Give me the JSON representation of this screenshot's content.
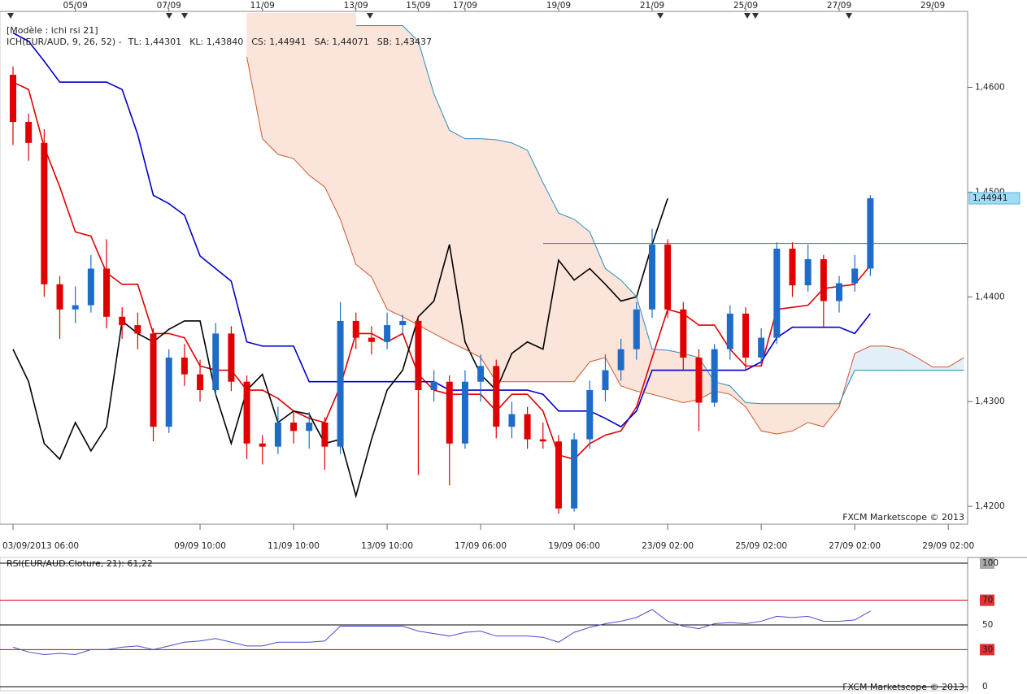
{
  "chart_data": [
    {
      "type": "candlestick",
      "title": "[Modèle : ichi rsi 21]",
      "indicator_label": "ICH(EUR/AUD, 9, 26, 52) -",
      "watermark": "FXCM Marketscope © 2013",
      "categories": [
        "03/09/2013 06:00",
        null,
        null,
        null,
        null,
        null,
        null,
        null,
        null,
        null,
        null,
        null,
        "09/09 10:00",
        null,
        null,
        null,
        null,
        null,
        "11/09 10:00",
        null,
        null,
        null,
        null,
        null,
        "13/09 10:00",
        null,
        null,
        null,
        null,
        null,
        "17/09 06:00",
        null,
        null,
        null,
        null,
        null,
        "19/09 06:00",
        null,
        null,
        null,
        null,
        null,
        "23/09 02:00",
        null,
        null,
        null,
        null,
        null,
        "25/09 02:00",
        null,
        null,
        null,
        null,
        null,
        "27/09 02:00",
        null,
        null,
        null,
        null,
        null,
        "29/09 02:00",
        null
      ],
      "top_labels": [
        null,
        null,
        null,
        null,
        "05/09",
        null,
        null,
        null,
        null,
        null,
        "07/09",
        null,
        null,
        null,
        null,
        null,
        "11/09",
        null,
        null,
        null,
        null,
        null,
        "13/09",
        null,
        null,
        null,
        "15/09",
        null,
        null,
        "17/09",
        null,
        null,
        null,
        null,
        null,
        "19/09",
        null,
        null,
        null,
        null,
        null,
        "21/09",
        null,
        null,
        null,
        null,
        null,
        "25/09",
        null,
        null,
        null,
        null,
        null,
        "27/09",
        null,
        null,
        null,
        null,
        null,
        "29/09",
        null,
        null
      ],
      "open": [
        1.4612,
        1.4567,
        1.4547,
        1.4412,
        1.4388,
        1.4392,
        1.4427,
        1.4381,
        1.4373,
        1.4365,
        1.4276,
        1.4342,
        1.4326,
        1.4311,
        1.4365,
        1.4319,
        1.426,
        1.4257,
        1.428,
        1.4272,
        1.428,
        1.4257,
        1.4377,
        1.4361,
        1.4357,
        1.4373,
        1.4377,
        1.4311,
        1.4319,
        1.426,
        1.4319,
        1.4334,
        1.4276,
        1.4288,
        1.4264,
        1.4262,
        1.4198,
        1.4264,
        1.4311,
        1.433,
        1.435,
        1.4388,
        1.445,
        1.4388,
        1.4342,
        1.4299,
        1.435,
        1.4384,
        1.4342,
        1.4361,
        1.4446,
        1.4411,
        1.4436,
        1.4396,
        1.4413,
        1.4427,
        null,
        null,
        null,
        null,
        null,
        null
      ],
      "high": [
        1.462,
        1.4575,
        1.456,
        1.442,
        1.441,
        1.444,
        1.4455,
        1.439,
        1.4385,
        1.437,
        1.435,
        1.4355,
        1.434,
        1.4375,
        1.4372,
        1.4325,
        1.4268,
        1.4295,
        1.4292,
        1.429,
        1.4285,
        1.4395,
        1.4385,
        1.4372,
        1.4385,
        1.4383,
        1.438,
        1.433,
        1.4325,
        1.433,
        1.4345,
        1.434,
        1.43,
        1.4295,
        1.428,
        1.4268,
        1.427,
        1.432,
        1.4345,
        1.436,
        1.4395,
        1.4465,
        1.4455,
        1.4395,
        1.435,
        1.4355,
        1.4392,
        1.439,
        1.437,
        1.4452,
        1.4452,
        1.445,
        1.444,
        1.442,
        1.444,
        1.4497,
        null,
        null,
        null,
        null,
        null,
        null
      ],
      "low": [
        1.4545,
        1.453,
        1.44,
        1.436,
        1.4375,
        1.4385,
        1.437,
        1.436,
        1.435,
        1.4262,
        1.427,
        1.4315,
        1.43,
        1.4305,
        1.431,
        1.4245,
        1.424,
        1.425,
        1.426,
        1.4255,
        1.4235,
        1.425,
        1.435,
        1.4345,
        1.435,
        1.4365,
        1.423,
        1.43,
        1.422,
        1.4255,
        1.43,
        1.4265,
        1.4265,
        1.4255,
        1.4255,
        1.4193,
        1.4195,
        1.4255,
        1.43,
        1.432,
        1.434,
        1.438,
        1.438,
        1.433,
        1.4272,
        1.4295,
        1.434,
        1.433,
        1.4335,
        1.4355,
        1.44,
        1.4405,
        1.437,
        1.4385,
        1.4405,
        1.442,
        null,
        null,
        null,
        null,
        null,
        null
      ],
      "close": [
        1.4567,
        1.4547,
        1.4412,
        1.4388,
        1.4392,
        1.4427,
        1.4381,
        1.4373,
        1.4365,
        1.4276,
        1.4342,
        1.4326,
        1.4311,
        1.4365,
        1.4319,
        1.426,
        1.4257,
        1.428,
        1.4272,
        1.428,
        1.4257,
        1.4377,
        1.4361,
        1.4357,
        1.4373,
        1.4377,
        1.4311,
        1.4319,
        1.426,
        1.4319,
        1.4334,
        1.4276,
        1.4288,
        1.4264,
        1.4262,
        1.4198,
        1.4264,
        1.4311,
        1.433,
        1.435,
        1.4388,
        1.445,
        1.4388,
        1.4342,
        1.4299,
        1.435,
        1.4384,
        1.4342,
        1.4361,
        1.4446,
        1.4411,
        1.4436,
        1.4396,
        1.4413,
        1.4427,
        1.44941,
        null,
        null,
        null,
        null,
        null,
        null
      ],
      "up_color": "#1e6cc8",
      "down_color": "#e00000",
      "series": [
        {
          "name": "TL: 1,44301",
          "color": "#e00000",
          "values": [
            1.4605,
            1.4598,
            1.4543,
            1.4505,
            1.4462,
            1.4458,
            1.4423,
            1.4412,
            1.4412,
            1.4365,
            1.4365,
            1.4361,
            1.4334,
            1.433,
            1.433,
            1.4311,
            1.4311,
            1.4303,
            1.4291,
            1.4284,
            1.428,
            1.4315,
            1.4365,
            1.4365,
            1.4357,
            1.4365,
            1.4326,
            1.4311,
            1.4307,
            1.4307,
            1.4307,
            1.4291,
            1.4307,
            1.4307,
            1.4291,
            1.4249,
            1.4245,
            1.426,
            1.4268,
            1.4272,
            1.4295,
            1.4342,
            1.4388,
            1.4384,
            1.4373,
            1.4373,
            1.435,
            1.4334,
            1.4334,
            1.4388,
            1.439,
            1.4392,
            1.4408,
            1.441,
            1.4412,
            1.443,
            null,
            null,
            null,
            null,
            null,
            null
          ]
        },
        {
          "name": "KL: 1,43840",
          "color": "#0000cc",
          "values": [
            1.4652,
            1.4644,
            1.4625,
            1.4605,
            1.4605,
            1.4605,
            1.4605,
            1.4598,
            1.4555,
            1.4497,
            1.4489,
            1.4478,
            1.4439,
            1.4427,
            1.4415,
            1.4357,
            1.4353,
            1.4353,
            1.4353,
            1.4319,
            1.4319,
            1.4319,
            1.4319,
            1.4319,
            1.4319,
            1.4319,
            1.4319,
            1.4319,
            1.4311,
            1.4311,
            1.4311,
            1.4311,
            1.4311,
            1.4311,
            1.4307,
            1.4291,
            1.4291,
            1.4291,
            1.4284,
            1.4276,
            1.4291,
            1.433,
            1.433,
            1.433,
            1.433,
            1.433,
            1.433,
            1.433,
            1.4338,
            1.4361,
            1.4371,
            1.4371,
            1.4371,
            1.4371,
            1.4365,
            1.4384,
            null,
            null,
            null,
            null,
            null,
            null
          ]
        },
        {
          "name": "CS: 1,44941",
          "color": "#000000",
          "values": [
            1.435,
            1.4319,
            1.426,
            1.4245,
            1.428,
            1.4253,
            1.4276,
            1.4377,
            1.4365,
            1.4357,
            1.4369,
            1.4377,
            1.4377,
            1.4307,
            1.426,
            1.4311,
            1.4326,
            1.428,
            1.4291,
            1.4288,
            1.426,
            1.4264,
            1.421,
            1.4264,
            1.4311,
            1.433,
            1.4381,
            1.4396,
            1.445,
            1.4357,
            1.4326,
            1.4311,
            1.4346,
            1.4357,
            1.435,
            1.4435,
            1.4416,
            1.4427,
            1.4412,
            1.4396,
            1.44,
            1.445,
            1.4494,
            null,
            null,
            null,
            null,
            null,
            null,
            null,
            null,
            null,
            null,
            null,
            null,
            null,
            null,
            null,
            null,
            null,
            null,
            null
          ]
        },
        {
          "name": "SA: 1,44071",
          "color": "#d2572b",
          "values": [
            null,
            null,
            null,
            null,
            null,
            null,
            null,
            null,
            null,
            null,
            null,
            null,
            null,
            null,
            null,
            1.4629,
            1.4551,
            1.4536,
            1.4532,
            1.4516,
            1.4505,
            1.4474,
            1.4431,
            1.4419,
            1.4388,
            1.4381,
            1.4373,
            1.4365,
            1.4357,
            1.435,
            1.4342,
            1.4319,
            1.4319,
            1.4319,
            1.4319,
            1.4319,
            1.4319,
            1.4338,
            1.4342,
            1.4315,
            1.431,
            1.4307,
            1.4303,
            1.4299,
            1.4302,
            1.431,
            1.4307,
            1.4295,
            1.4272,
            1.4269,
            1.4272,
            1.428,
            1.4276,
            1.4295,
            1.4346,
            1.4353,
            1.4353,
            1.435,
            1.4342,
            1.4333,
            1.4333,
            1.4342
          ]
        },
        {
          "name": "SB: 1,43437",
          "color": "#2a8cc0",
          "values": [
            null,
            null,
            null,
            null,
            null,
            null,
            null,
            null,
            null,
            null,
            null,
            null,
            null,
            null,
            null,
            null,
            null,
            null,
            null,
            null,
            null,
            null,
            1.4659,
            1.4659,
            1.4659,
            1.4659,
            1.4644,
            1.4594,
            1.4559,
            1.4551,
            1.4551,
            1.455,
            1.4547,
            1.454,
            1.4509,
            1.448,
            1.4474,
            1.4462,
            1.4427,
            1.4416,
            1.44,
            1.435,
            1.4349,
            1.4346,
            1.4342,
            1.4319,
            1.4315,
            1.4299,
            1.4298,
            1.4298,
            1.4298,
            1.4298,
            1.4298,
            1.4298,
            1.433,
            1.433,
            1.433,
            1.433,
            1.433,
            1.433,
            1.433,
            1.433
          ]
        }
      ],
      "cloud_colors": [
        "#fbe4da",
        "#e3eff8"
      ],
      "hline": 1.4451,
      "last_price_label": "1,44941",
      "ylim": [
        1.4183,
        1.4671
      ],
      "yticks": [
        {
          "value": 1.42,
          "label": "1,4200"
        },
        {
          "value": 1.43,
          "label": "1,4300"
        },
        {
          "value": 1.44,
          "label": "1,4400"
        },
        {
          "value": 1.45,
          "label": "1,4500"
        },
        {
          "value": 1.46,
          "label": "1,4600"
        }
      ]
    },
    {
      "type": "line",
      "title": "RSI(EUR/AUD.Cloture, 21): 61,22",
      "watermark": "FXCM Marketscope © 2013",
      "color": "#4a4ad0",
      "values": [
        32,
        28,
        26,
        27,
        26,
        30,
        30,
        32,
        33,
        30,
        33,
        36,
        37,
        39,
        36,
        33,
        33,
        36,
        36,
        36,
        37,
        49,
        49,
        49,
        49,
        49,
        45,
        43,
        41,
        44,
        45,
        41,
        41,
        41,
        40,
        36,
        44,
        48,
        51,
        53,
        56,
        62.5,
        53,
        49,
        47,
        51,
        52,
        51,
        53,
        57,
        56,
        57,
        53,
        53,
        54,
        61.22,
        null,
        null,
        null,
        null,
        null,
        null
      ],
      "ylim": [
        0,
        100
      ],
      "yticks": [
        0,
        30,
        50,
        70,
        100
      ],
      "level_colors": [
        "#000000",
        "#cc0000",
        "#000000",
        "#cc0000",
        "#000000"
      ]
    }
  ]
}
